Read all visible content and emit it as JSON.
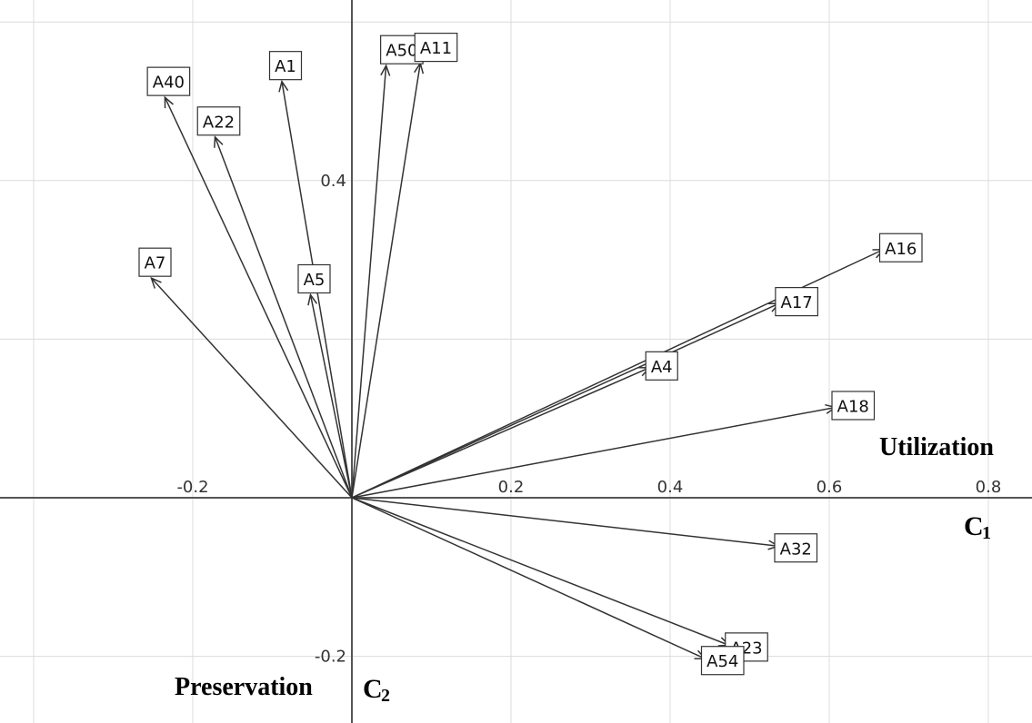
{
  "chart_data": {
    "type": "biplot-vectors",
    "x_axis_label": "C",
    "x_axis_subscript": "1",
    "y_axis_label": "C",
    "y_axis_subscript": "2",
    "x_annotation": "Utilization",
    "y_annotation": "Preservation",
    "xlim": [
      -0.44,
      0.85
    ],
    "ylim": [
      -0.28,
      0.62
    ],
    "x_ticks": [
      -0.2,
      0.2,
      0.4,
      0.6,
      0.8
    ],
    "x_tick_labels": [
      "-0.2",
      "0.2",
      "0.4",
      "0.6",
      "0.8"
    ],
    "y_ticks": [
      0.4,
      -0.2
    ],
    "y_tick_labels": [
      "0.4",
      "-0.2"
    ],
    "grid": true,
    "vectors": [
      {
        "name": "A40",
        "x": -0.235,
        "y": 0.505
      },
      {
        "name": "A1",
        "x": -0.088,
        "y": 0.525
      },
      {
        "name": "A22",
        "x": -0.172,
        "y": 0.455
      },
      {
        "name": "A50",
        "x": 0.043,
        "y": 0.545
      },
      {
        "name": "A11",
        "x": 0.086,
        "y": 0.548
      },
      {
        "name": "A7",
        "x": -0.252,
        "y": 0.277
      },
      {
        "name": "A5",
        "x": -0.052,
        "y": 0.256
      },
      {
        "name": "A16",
        "x": 0.668,
        "y": 0.313
      },
      {
        "name": "A17",
        "x": 0.537,
        "y": 0.245
      },
      {
        "name": "A4",
        "x": 0.374,
        "y": 0.164
      },
      {
        "name": "A18",
        "x": 0.608,
        "y": 0.114
      },
      {
        "name": "A32",
        "x": 0.536,
        "y": -0.061
      },
      {
        "name": "A23",
        "x": 0.474,
        "y": -0.186
      },
      {
        "name": "A54",
        "x": 0.444,
        "y": -0.203
      }
    ]
  }
}
